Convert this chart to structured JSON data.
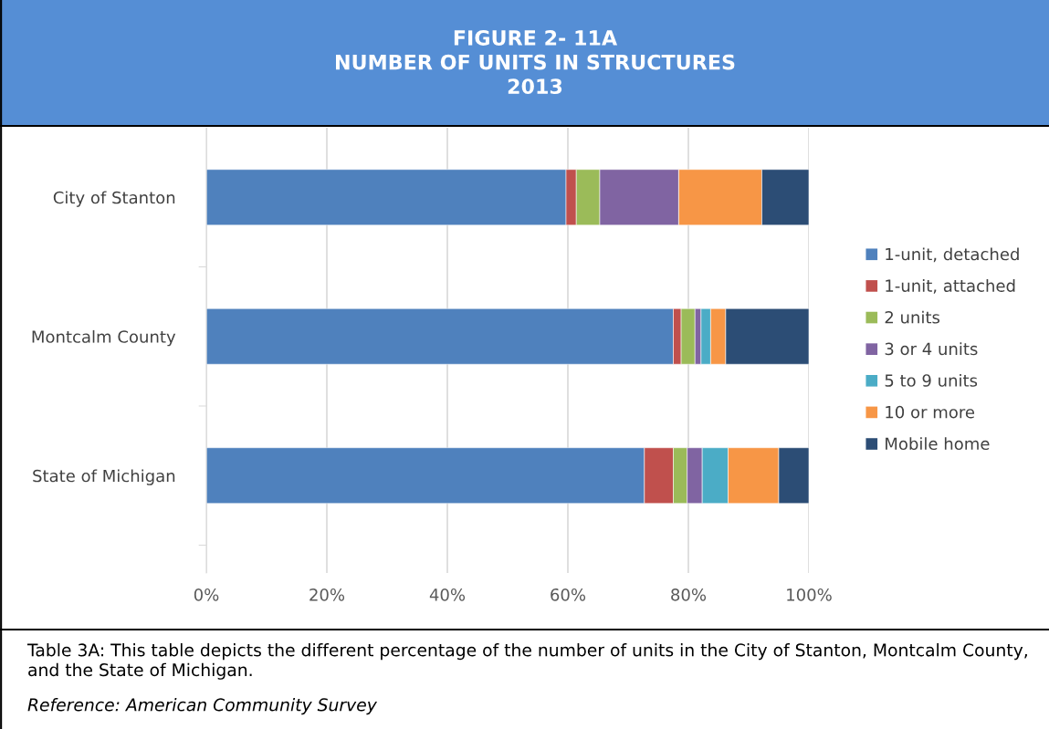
{
  "chart_data": {
    "type": "bar",
    "orientation": "horizontal",
    "stacked": true,
    "title": "FIGURE 2- 11A\nNUMBER OF UNITS IN STRUCTURES\n2013",
    "categories": [
      "City of Stanton",
      "Montcalm County",
      "State of Michigan"
    ],
    "series": [
      {
        "name": "1-unit, detached",
        "color": "#4f81bd",
        "values": [
          59.7,
          77.5,
          72.7
        ]
      },
      {
        "name": "1-unit, attached",
        "color": "#c0504d",
        "values": [
          1.7,
          1.3,
          4.8
        ]
      },
      {
        "name": "2 units",
        "color": "#9bbb59",
        "values": [
          3.9,
          2.3,
          2.3
        ]
      },
      {
        "name": "3 or 4 units",
        "color": "#8064a2",
        "values": [
          13.1,
          1.0,
          2.5
        ]
      },
      {
        "name": "5 to 9 units",
        "color": "#4bacc6",
        "values": [
          0,
          1.6,
          4.3
        ]
      },
      {
        "name": "10 or more",
        "color": "#f79646",
        "values": [
          13.8,
          2.5,
          8.4
        ]
      },
      {
        "name": "Mobile home",
        "color": "#2c4d75",
        "values": [
          7.8,
          13.8,
          5.0
        ]
      }
    ],
    "xlim": [
      0,
      100
    ],
    "xticks": [
      {
        "value": 0,
        "label": "0%"
      },
      {
        "value": 20,
        "label": "20%"
      },
      {
        "value": 40,
        "label": "40%"
      },
      {
        "value": 60,
        "label": "60%"
      },
      {
        "value": 80,
        "label": "80%"
      },
      {
        "value": 100,
        "label": "100%"
      }
    ],
    "grid": "x",
    "legend": "right",
    "annotations": [
      "Table 3A: This table depicts the different percentage of the number of units in the City of Stanton, Montcalm County, and the State of Michigan.",
      "Reference: American Community Survey"
    ]
  }
}
